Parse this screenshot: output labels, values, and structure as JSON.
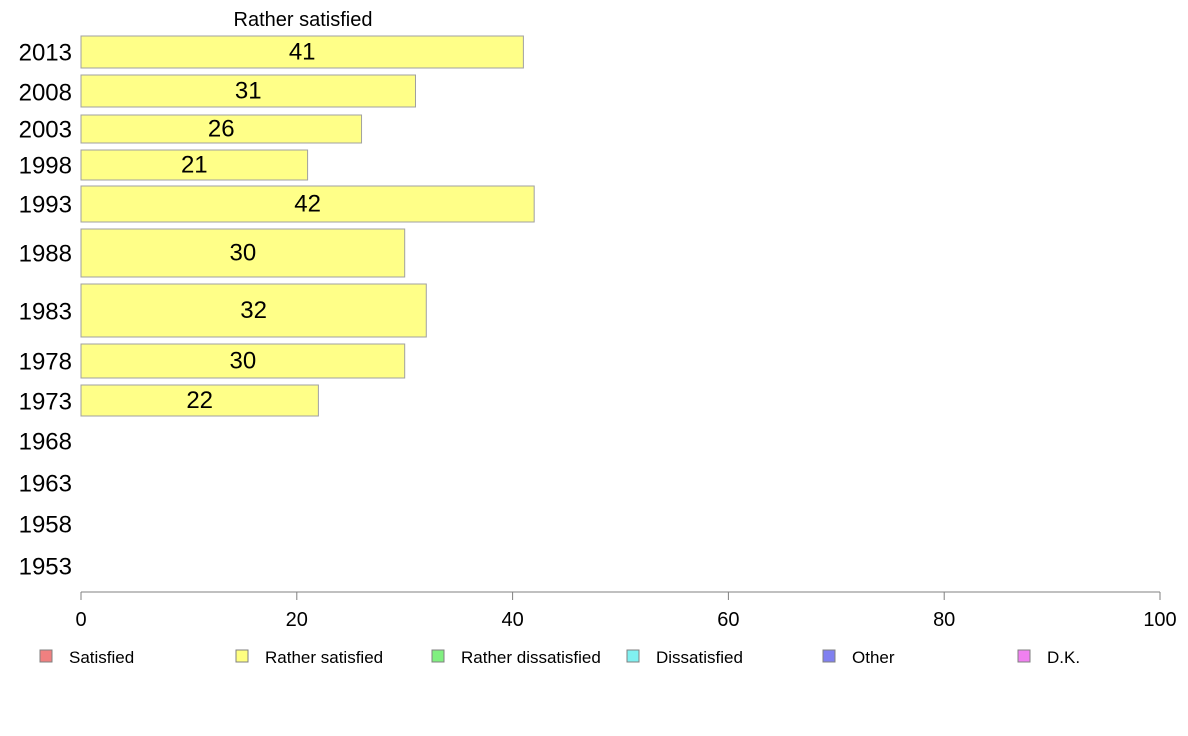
{
  "chart_data": {
    "type": "bar",
    "orientation": "horizontal",
    "title": "Rather satisfied",
    "categories": [
      "2013",
      "2008",
      "2003",
      "1998",
      "1993",
      "1988",
      "1983",
      "1978",
      "1973",
      "1968",
      "1963",
      "1958",
      "1953"
    ],
    "values": [
      41,
      31,
      26,
      21,
      42,
      30,
      32,
      30,
      22,
      null,
      null,
      null,
      null
    ],
    "bar_color": "#ffff88",
    "bar_stroke": "#a0a0a0",
    "xlim": [
      0,
      100
    ],
    "xticks": [
      "0",
      "20",
      "40",
      "60",
      "80",
      "100"
    ],
    "grid": false,
    "legend": {
      "placement": "bottom",
      "items": [
        {
          "label": "Satisfied",
          "color": "#f08080"
        },
        {
          "label": "Rather satisfied",
          "color": "#ffff80"
        },
        {
          "label": "Rather dissatisfied",
          "color": "#80f080"
        },
        {
          "label": "Dissatisfied",
          "color": "#80f0f0"
        },
        {
          "label": "Other",
          "color": "#8080f0"
        },
        {
          "label": "D.K.",
          "color": "#f080f0"
        }
      ]
    }
  }
}
